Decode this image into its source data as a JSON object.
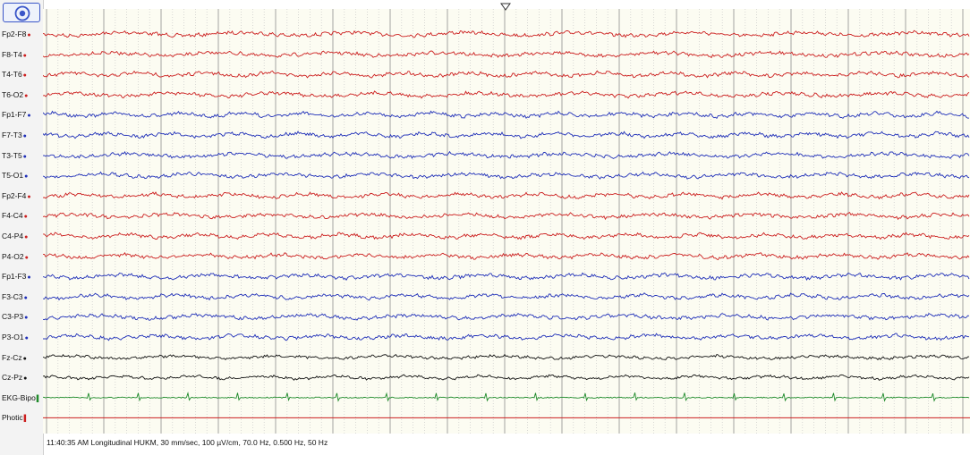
{
  "toolbar": {
    "record_button_icon": "concentric-circle-icon",
    "cursor_marker_icon": "triangle-down-icon"
  },
  "montage": {
    "channels": [
      {
        "label": "Fp2-F8",
        "color": "#cc1f1f",
        "marker": "dot"
      },
      {
        "label": "F8-T4",
        "color": "#cc1f1f",
        "marker": "dot"
      },
      {
        "label": "T4-T6",
        "color": "#cc1f1f",
        "marker": "dot"
      },
      {
        "label": "T6-O2",
        "color": "#cc1f1f",
        "marker": "dot"
      },
      {
        "label": "Fp1-F7",
        "color": "#1f2fb8",
        "marker": "dot"
      },
      {
        "label": "F7-T3",
        "color": "#1f2fb8",
        "marker": "dot"
      },
      {
        "label": "T3-T5",
        "color": "#1f2fb8",
        "marker": "dot"
      },
      {
        "label": "T5-O1",
        "color": "#1f2fb8",
        "marker": "dot"
      },
      {
        "label": "Fp2-F4",
        "color": "#cc1f1f",
        "marker": "dot"
      },
      {
        "label": "F4-C4",
        "color": "#cc1f1f",
        "marker": "dot"
      },
      {
        "label": "C4-P4",
        "color": "#cc1f1f",
        "marker": "dot"
      },
      {
        "label": "P4-O2",
        "color": "#cc1f1f",
        "marker": "dot"
      },
      {
        "label": "Fp1-F3",
        "color": "#1f2fb8",
        "marker": "dot"
      },
      {
        "label": "F3-C3",
        "color": "#1f2fb8",
        "marker": "dot"
      },
      {
        "label": "C3-P3",
        "color": "#1f2fb8",
        "marker": "dot"
      },
      {
        "label": "P3-O1",
        "color": "#1f2fb8",
        "marker": "dot"
      },
      {
        "label": "Fz-Cz",
        "color": "#111111",
        "marker": "dot"
      },
      {
        "label": "Cz-Pz",
        "color": "#111111",
        "marker": "dot"
      },
      {
        "label": "EKG-Bipo",
        "color": "#1e8a2a",
        "marker": "bar"
      },
      {
        "label": "Photic",
        "color": "#cc1f1f",
        "marker": "bar"
      }
    ]
  },
  "status": {
    "text": "11:40:35 AM Longitudinal HUKM, 30 mm/sec, 100 µV/cm, 70.0 Hz, 0.500 Hz, 50 Hz"
  },
  "colors": {
    "background": "#fcfcf2",
    "grid_major": "#9a9a9a",
    "grid_minor": "#c8c8c8"
  }
}
